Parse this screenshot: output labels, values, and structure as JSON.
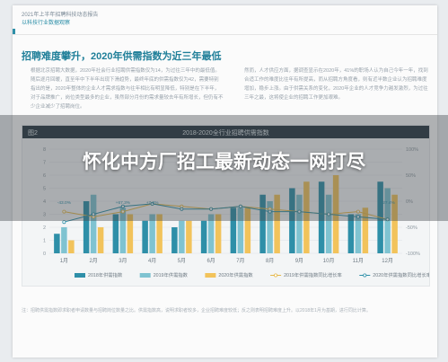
{
  "header": {
    "line1": "2021年上半年招聘科技动态报告",
    "line2": "以科技行业数据观察"
  },
  "section_title": "招聘难度攀升，2020年供需指数为近三年最低",
  "paragraphs": {
    "left": "根据北京招聘大数据，2020年社会行业招聘供需指数仅为14，为过往三年中的最低值。随后逐月回暖，直至年中下半年出现下滑趋势，最终年底的供需指数仅为42，需要特别指出的是，2020年整体的企业人才需求指数与往年相比有明显降低，特别是在下半年，对于品牌推广，岗位类型最多的企业，虽然部分月份的需求量较去年有所增长，但仍有不少企业减少了招聘岗位。",
    "right": "然而，人才供应方面，据调查显示在2020年，41%的职场人认为自己今年一年，找到合适工作的难度比往年有所提高，而从招聘方角度看，则有近半数企业认为招聘难度增加，稳步上涨。由于供需关系的变化，2020年企业的人才竞争力越发激烈，为过往三年之最，这将使企业的招聘工作更加艰难。"
  },
  "figure": {
    "number": "图2",
    "title": "2018-2020全行业招聘供需指数"
  },
  "chart_data": {
    "type": "bar",
    "title": "2018-2020全行业招聘供需指数",
    "categories": [
      "1月",
      "2月",
      "3月",
      "4月",
      "5月",
      "6月",
      "7月",
      "8月",
      "9月",
      "10月",
      "11月",
      "12月"
    ],
    "ylim_left": [
      0,
      8
    ],
    "ylim_right": [
      -100,
      100
    ],
    "left_ticks": [
      "0",
      "1",
      "2",
      "3",
      "4",
      "5",
      "6",
      "7",
      "8"
    ],
    "right_ticks": [
      "100%",
      "50%",
      "0%",
      "-50%",
      "-100%"
    ],
    "series": [
      {
        "name": "2018年供需指数",
        "type": "bar",
        "color": "#2e8fa8",
        "values": [
          1.5,
          4.0,
          3.0,
          2.5,
          2.0,
          2.5,
          3.5,
          4.5,
          5.0,
          5.5,
          3.0,
          5.5
        ]
      },
      {
        "name": "2019年供需指数",
        "type": "bar",
        "color": "#7fc3d1",
        "values": [
          2.0,
          4.5,
          3.5,
          3.0,
          2.5,
          3.0,
          3.5,
          4.0,
          4.5,
          4.5,
          3.0,
          5.0
        ]
      },
      {
        "name": "2020年供需指数",
        "type": "bar",
        "color": "#f2c35b",
        "values": [
          1.0,
          2.0,
          3.0,
          3.0,
          2.5,
          3.0,
          3.5,
          4.5,
          5.5,
          6.0,
          3.5,
          4.5
        ]
      },
      {
        "name": "2019年供需指数同比增长率",
        "type": "line",
        "color": "#e5b84b",
        "values": [
          -20,
          -30,
          -20,
          -5,
          -10,
          -15,
          -10,
          -15,
          -20,
          -25,
          -20,
          -35
        ]
      },
      {
        "name": "2020年供需指数同比增长率",
        "type": "line",
        "color": "#2e8fa8",
        "values": [
          -40,
          -25,
          -10,
          -5,
          -15,
          -15,
          -10,
          -20,
          -20,
          -25,
          -30,
          -35
        ]
      }
    ],
    "data_labels": [
      {
        "category": "1月",
        "text": "-43.0%"
      },
      {
        "category": "3月",
        "text": "+67.3%"
      },
      {
        "category": "4月",
        "text": "+7.2%"
      },
      {
        "category": "12月",
        "text": "+27.4%"
      }
    ],
    "grid": true,
    "legend_position": "bottom"
  },
  "note": "注：招聘供需指数即求职者申请数量与招聘岗位数量之比。供需指数高，说明求职者较多，企业招聘难度较低；反之则表明招聘难度上升。以2018年1月为基期，进行同比计算。",
  "overlay": {
    "title": "怀化中方厂招工最新动态一网打尽"
  }
}
